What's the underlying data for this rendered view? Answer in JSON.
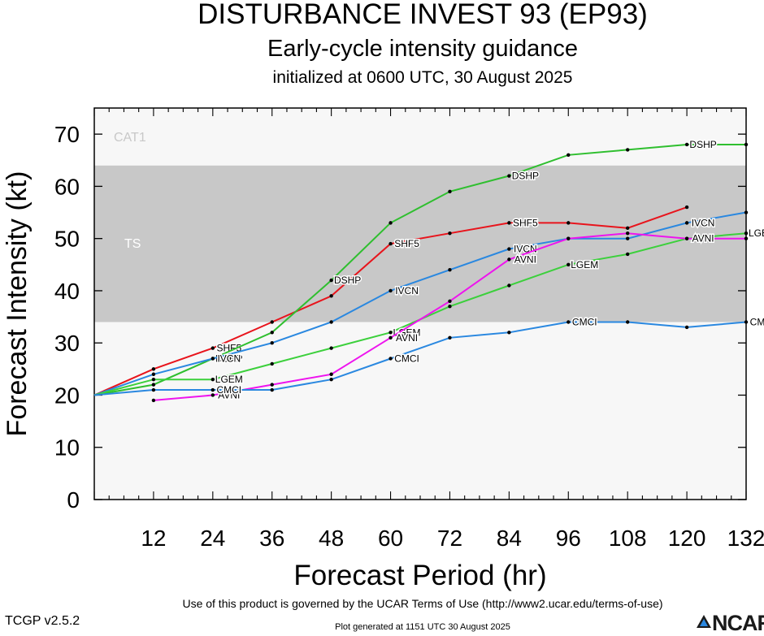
{
  "header": {
    "title": "DISTURBANCE INVEST 93 (EP93)",
    "subtitle": "Early-cycle intensity guidance",
    "initialized": "initialized at 0600 UTC, 30 August 2025"
  },
  "footer": {
    "terms": "Use of this product is governed by the UCAR Terms of Use (http://www2.ucar.edu/terms-of-use)",
    "version": "TCGP v2.5.2",
    "generated": "Plot generated at 1151 UTC   30 August 2025",
    "logo_text": "NCAR"
  },
  "chart_data": {
    "type": "line",
    "xlabel": "Forecast Period (hr)",
    "ylabel": "Forecast Intensity (kt)",
    "xlim": [
      0,
      132
    ],
    "ylim": [
      0,
      75
    ],
    "xticks": [
      12,
      24,
      36,
      48,
      60,
      72,
      84,
      96,
      108,
      120,
      132
    ],
    "yticks": [
      0,
      10,
      20,
      30,
      40,
      50,
      60,
      70
    ],
    "bands": [
      {
        "label": "TS",
        "from": 34,
        "to": 64,
        "color": "#c8c8c8"
      },
      {
        "label": "CAT1",
        "from": 64,
        "to": 75,
        "color": "#f7f7f7"
      }
    ],
    "below_band_color": "#f7f7f7",
    "series": [
      {
        "name": "SHF5",
        "color": "#e8141c",
        "x": [
          0,
          12,
          24,
          36,
          48,
          60,
          72,
          84,
          96,
          108,
          120
        ],
        "y": [
          20,
          25,
          29,
          34,
          39,
          49,
          51,
          53,
          53,
          52,
          56
        ],
        "label_hours": [
          24,
          60,
          84
        ]
      },
      {
        "name": "DSHP",
        "color": "#2fbf2f",
        "x": [
          0,
          12,
          24,
          36,
          48,
          60,
          72,
          84,
          96,
          108,
          120,
          132
        ],
        "y": [
          20,
          22,
          27,
          32,
          42,
          53,
          59,
          62,
          66,
          67,
          68,
          68
        ],
        "label_hours": [
          24,
          48,
          84,
          120
        ]
      },
      {
        "name": "IVCN",
        "color": "#2a88e0",
        "x": [
          0,
          12,
          24,
          36,
          48,
          60,
          72,
          84,
          96,
          108,
          120,
          132
        ],
        "y": [
          20,
          24,
          27,
          30,
          34,
          40,
          44,
          48,
          50,
          50,
          53,
          55
        ],
        "label_hours": [
          24,
          60,
          84,
          120
        ]
      },
      {
        "name": "LGEM",
        "color": "#3cd03c",
        "x": [
          0,
          12,
          24,
          36,
          48,
          60,
          72,
          84,
          96,
          108,
          120,
          132
        ],
        "y": [
          20,
          23,
          23,
          26,
          29,
          32,
          37,
          41,
          45,
          47,
          50,
          51
        ],
        "label_hours": [
          24,
          60,
          96,
          132
        ]
      },
      {
        "name": "AVNI",
        "color": "#ee14ee",
        "x": [
          12,
          24,
          36,
          48,
          60,
          72,
          84,
          96,
          108,
          120,
          132
        ],
        "y": [
          19,
          20,
          22,
          24,
          31,
          38,
          46,
          50,
          51,
          50,
          50
        ],
        "label_hours": [
          24,
          60,
          84,
          120
        ]
      },
      {
        "name": "CMCI",
        "color": "#2a88e0",
        "x": [
          0,
          12,
          24,
          36,
          48,
          60,
          72,
          84,
          96,
          108,
          120,
          132
        ],
        "y": [
          20,
          21,
          21,
          21,
          23,
          27,
          31,
          32,
          34,
          34,
          33,
          34
        ],
        "label_hours": [
          24,
          60,
          96,
          132
        ]
      }
    ]
  }
}
